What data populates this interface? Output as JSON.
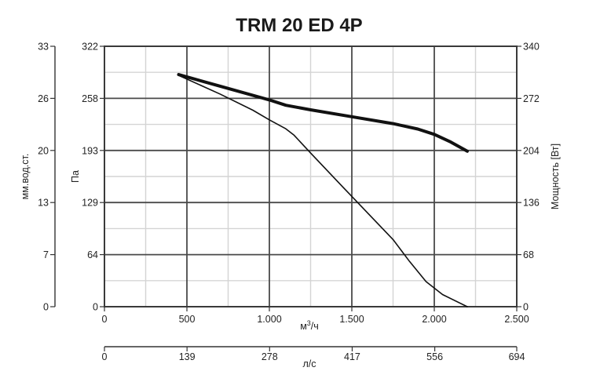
{
  "chart_data": {
    "type": "line",
    "title": "TRM 20 ED 4P",
    "xlabel": "м³/ч",
    "xlabel_base": "м",
    "xlabel_sup": "3",
    "xlabel_tail": "/ч",
    "x_ticks": [
      "0",
      "500",
      "1.000",
      "1.500",
      "2.000",
      "2.500"
    ],
    "x_tick_values": [
      0,
      500,
      1000,
      1500,
      2000,
      2500
    ],
    "xlim": [
      0,
      2500
    ],
    "secondary_x_label": "л/с",
    "secondary_x_ticks": [
      "0",
      "139",
      "278",
      "417",
      "556",
      "694"
    ],
    "secondary_x_tick_values": [
      0,
      139,
      278,
      417,
      556,
      694
    ],
    "secondary_xlim": [
      0,
      694
    ],
    "ylabel_left_outer": "мм.вод.ст.",
    "y_ticks_left_outer": [
      "0",
      "7",
      "13",
      "20",
      "26",
      "33"
    ],
    "ylabel_left_inner": "Па",
    "y_ticks_left_inner": [
      "0",
      "64",
      "129",
      "193",
      "258",
      "322"
    ],
    "ylim": [
      0,
      322
    ],
    "ylabel_right": "Мощность [Вт]",
    "y_ticks_right": [
      "0",
      "68",
      "136",
      "204",
      "272",
      "340"
    ],
    "y_right_lim": [
      0,
      340
    ],
    "grid": true,
    "series": [
      {
        "axis": "right",
        "x": [
          450,
          700,
          1000,
          1100,
          1250,
          1500,
          1750,
          1900,
          2000,
          2100,
          2200
        ],
        "y": [
          303,
          288,
          270,
          263,
          257,
          248,
          239,
          232,
          225,
          215,
          203
        ]
      },
      {
        "axis": "left",
        "x": [
          450,
          700,
          900,
          1000,
          1100,
          1150,
          1250,
          1450,
          1600,
          1750,
          1850,
          1950,
          2050,
          2200
        ],
        "y": [
          286,
          263,
          243,
          231,
          220,
          212,
          190,
          147,
          115,
          83,
          56,
          31,
          15,
          0
        ]
      }
    ]
  }
}
